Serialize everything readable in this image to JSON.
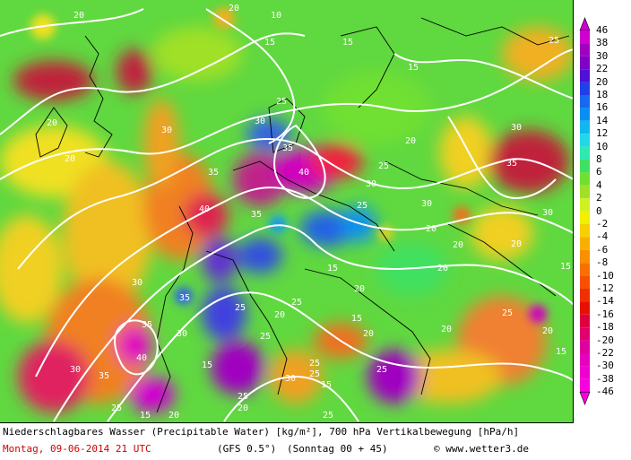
{
  "caption": {
    "line1": "Niederschlagbares Wasser (Precipitable Water) [kg/m²], 700 hPa Vertikalbewegung [hPa/h]",
    "date": "Montag, 09-06-2014  21 UTC",
    "model": "(GFS 0.5°)",
    "run": "(Sonntag 00 + 45)",
    "copyright": "©",
    "site": "www.wetter3.de"
  },
  "legend": {
    "values": [
      "46",
      "38",
      "30",
      "22",
      "20",
      "18",
      "16",
      "14",
      "12",
      "10",
      "8",
      "6",
      "4",
      "2",
      "0",
      "-2",
      "-4",
      "-6",
      "-8",
      "-10",
      "-12",
      "-14",
      "-16",
      "-18",
      "-20",
      "-22",
      "-30",
      "-38",
      "-46"
    ],
    "colors": [
      "#d000d0",
      "#a000c0",
      "#8000c8",
      "#5010d8",
      "#2040e8",
      "#1868f0",
      "#0890f0",
      "#10b8f0",
      "#20d8e8",
      "#30e8b0",
      "#40e060",
      "#70e030",
      "#a0e028",
      "#d0f020",
      "#f0f000",
      "#f8d000",
      "#f8b000",
      "#f89000",
      "#f87000",
      "#f85000",
      "#f03000",
      "#e81000",
      "#e00040",
      "#e00070",
      "#e000a0",
      "#e800c0",
      "#f000d0",
      "#f800e0"
    ],
    "accent_colors": {
      "arrow_top": "#d000d0",
      "arrow_bottom": "#f800e0"
    }
  },
  "contours": {
    "labels": [
      "10",
      "15",
      "20",
      "25",
      "30",
      "35",
      "40"
    ]
  }
}
